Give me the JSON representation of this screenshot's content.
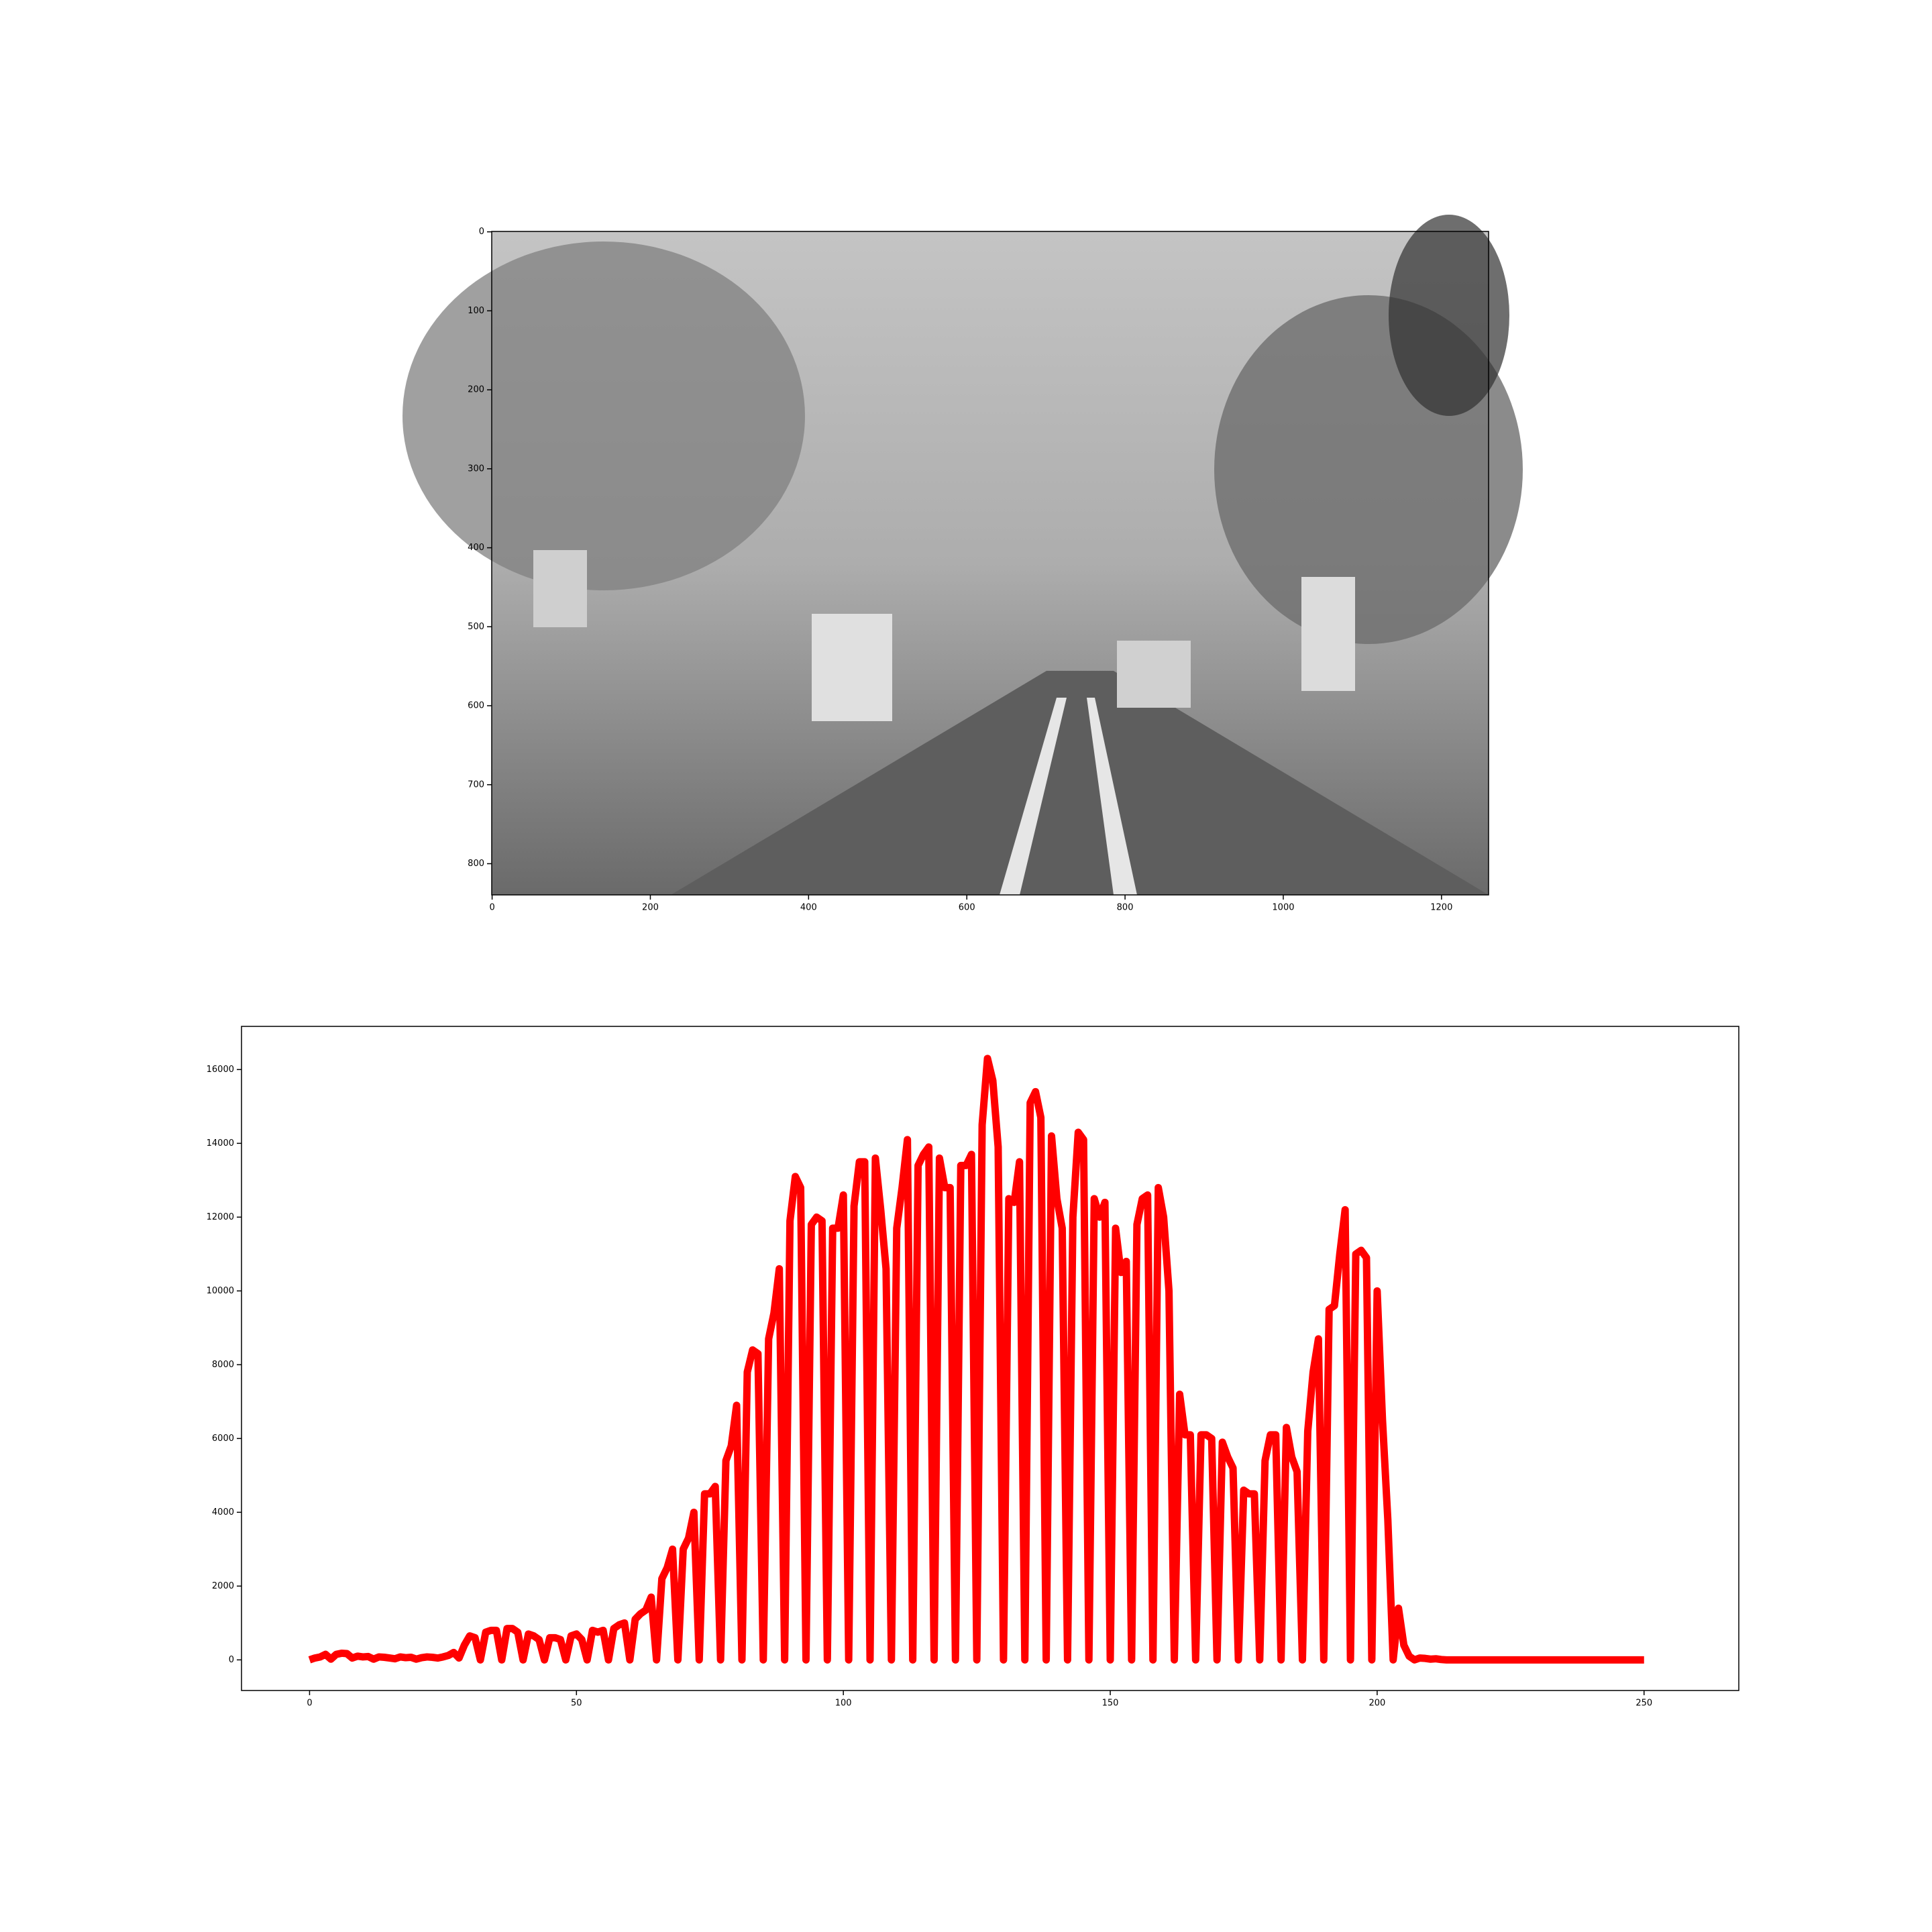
{
  "chart_data": [
    {
      "type": "image",
      "xlim": [
        -0.5,
        1259.5
      ],
      "ylim": [
        839.5,
        -0.5
      ],
      "xticks": [
        0,
        200,
        400,
        600,
        800,
        1000,
        1200
      ],
      "yticks": [
        0,
        100,
        200,
        300,
        400,
        500,
        600,
        700,
        800
      ]
    },
    {
      "type": "line",
      "color": "#ff0000",
      "values": [
        0,
        50,
        80,
        150,
        20,
        150,
        180,
        170,
        50,
        100,
        80,
        90,
        20,
        80,
        70,
        50,
        30,
        80,
        60,
        70,
        20,
        60,
        80,
        70,
        50,
        80,
        120,
        200,
        50,
        400,
        650,
        600,
        0,
        750,
        800,
        800,
        0,
        850,
        850,
        750,
        0,
        700,
        650,
        550,
        0,
        600,
        600,
        550,
        0,
        650,
        700,
        550,
        0,
        800,
        750,
        800,
        0,
        850,
        950,
        1000,
        0,
        1100,
        1250,
        1350,
        1700,
        0,
        2200,
        2500,
        3000,
        0,
        3000,
        3300,
        4000,
        0,
        4500,
        4500,
        4700,
        0,
        5400,
        5800,
        6900,
        0,
        7800,
        8400,
        8300,
        0,
        8700,
        9400,
        10600,
        0,
        11900,
        13100,
        12800,
        0,
        11800,
        12000,
        11900,
        0,
        11700,
        11700,
        12600,
        0,
        12300,
        13500,
        13500,
        0,
        13600,
        12200,
        10600,
        0,
        11700,
        12800,
        14100,
        0,
        13400,
        13700,
        13900,
        0,
        13600,
        12800,
        12800,
        0,
        13400,
        13400,
        13700,
        0,
        14500,
        16300,
        15700,
        13900,
        0,
        12500,
        12400,
        13500,
        0,
        15100,
        15400,
        14700,
        0,
        14200,
        12500,
        11700,
        0,
        12000,
        14300,
        14100,
        0,
        12500,
        12000,
        12400,
        0,
        11700,
        10500,
        10800,
        0,
        11800,
        12500,
        12600,
        0,
        12800,
        12000,
        10000,
        0,
        7200,
        6100,
        6100,
        0,
        6100,
        6100,
        6000,
        0,
        5900,
        5500,
        5200,
        0,
        4600,
        4500,
        4500,
        0,
        5400,
        6100,
        6100,
        0,
        6300,
        5500,
        5100,
        0,
        6200,
        7800,
        8700,
        0,
        9500,
        9600,
        11000,
        12200,
        0,
        11000,
        11100,
        10900,
        0,
        10000,
        6500,
        3800,
        0,
        1400,
        400,
        100,
        0,
        50,
        40,
        20,
        30,
        10,
        0,
        0,
        0,
        0,
        0,
        0,
        0,
        0,
        0,
        0,
        0,
        0,
        0,
        0,
        0,
        0,
        0,
        0,
        0,
        0,
        0,
        0,
        0,
        0,
        0,
        0,
        0,
        0,
        0,
        0,
        0,
        0,
        0,
        0,
        0,
        0,
        0,
        0
      ],
      "xlim": [
        -12.75,
        267.75
      ],
      "ylim": [
        -830,
        17170
      ],
      "xticks": [
        0,
        50,
        100,
        150,
        200,
        250
      ],
      "yticks": [
        0,
        2000,
        4000,
        6000,
        8000,
        10000,
        12000,
        14000,
        16000
      ]
    }
  ]
}
